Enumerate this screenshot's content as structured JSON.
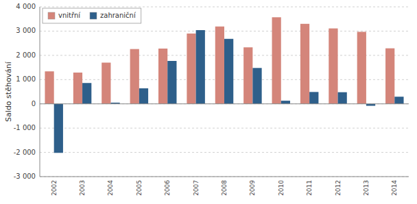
{
  "chart_data": {
    "type": "bar",
    "y_label": "Saldo stěhování",
    "categories": [
      "2002",
      "2003",
      "2004",
      "2005",
      "2006",
      "2007",
      "2008",
      "2009",
      "2010",
      "2011",
      "2012",
      "2013",
      "2014"
    ],
    "series": [
      {
        "name": "vnitřní",
        "color": "#d4857a",
        "values": [
          1340,
          1290,
          1700,
          2260,
          2280,
          2900,
          3190,
          2330,
          3570,
          3300,
          3110,
          2970,
          2290
        ]
      },
      {
        "name": "zahraniční",
        "color": "#2e5f8a",
        "values": [
          -2020,
          860,
          50,
          640,
          1770,
          3040,
          2680,
          1480,
          130,
          490,
          480,
          -80,
          295
        ]
      }
    ],
    "ylim": [
      -3000,
      4000
    ],
    "yticks": [
      {
        "value": -3000,
        "label": "-3 000"
      },
      {
        "value": -2000,
        "label": "-2 000"
      },
      {
        "value": -1000,
        "label": "-1 000"
      },
      0,
      {
        "value": 1000,
        "label": "1 000"
      },
      {
        "value": 2000,
        "label": "2 000"
      },
      {
        "value": 3000,
        "label": "3 000"
      },
      {
        "value": 4000,
        "label": "4 000"
      }
    ],
    "grid": true,
    "legend": "upper-left"
  }
}
